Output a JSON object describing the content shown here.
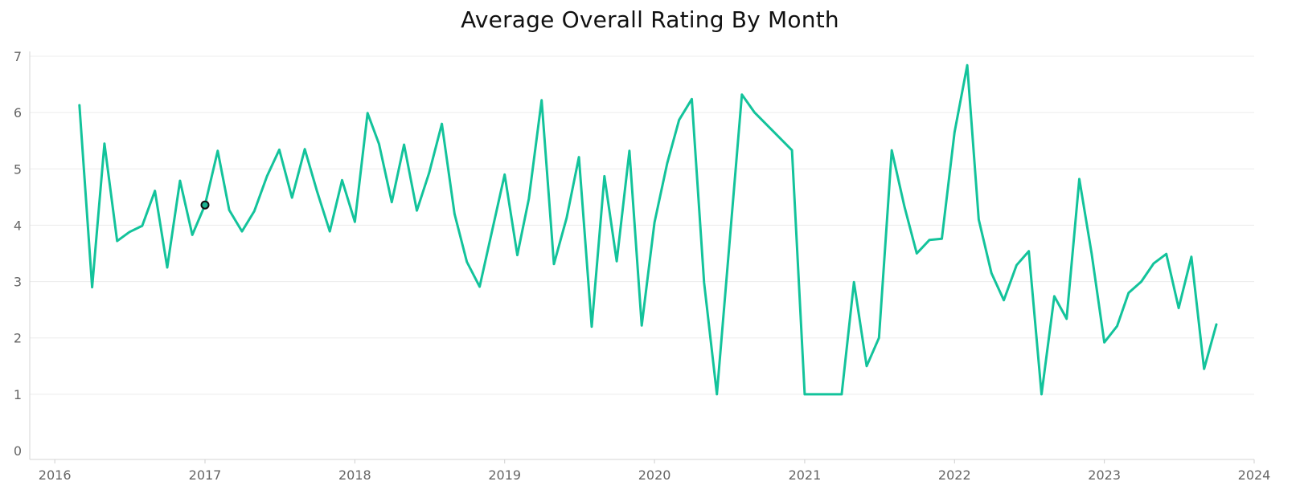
{
  "colors": {
    "series": "#13c39b",
    "highlight_fill": "#1db391",
    "highlight_stroke": "#111111"
  },
  "chart_data": {
    "type": "line",
    "title": "Average Overall Rating By Month",
    "xlabel": "",
    "ylabel": "",
    "xlim": [
      "2015-11-01",
      "2024-01-01"
    ],
    "ylim": [
      0,
      7
    ],
    "y_ticks": [
      0,
      1,
      2,
      3,
      4,
      5,
      6,
      7
    ],
    "x_ticks": [
      {
        "label": "2016",
        "date": "2016-01-01"
      },
      {
        "label": "2017",
        "date": "2017-01-01"
      },
      {
        "label": "2018",
        "date": "2018-01-01"
      },
      {
        "label": "2019",
        "date": "2019-01-01"
      },
      {
        "label": "2020",
        "date": "2020-01-01"
      },
      {
        "label": "2021",
        "date": "2021-01-01"
      },
      {
        "label": "2022",
        "date": "2022-01-01"
      },
      {
        "label": "2023",
        "date": "2023-01-01"
      },
      {
        "label": "2024",
        "date": "2024-01-01"
      }
    ],
    "grid": true,
    "legend": "none",
    "series": [
      {
        "x": [
          "2016-03",
          "2016-04",
          "2016-05",
          "2016-06",
          "2016-07",
          "2016-08",
          "2016-09",
          "2016-10",
          "2016-11",
          "2016-12",
          "2017-01",
          "2017-02",
          "2017-03",
          "2017-04",
          "2017-05",
          "2017-06",
          "2017-07",
          "2017-08",
          "2017-09",
          "2017-10",
          "2017-11",
          "2017-12",
          "2018-01",
          "2018-02",
          "2018-03",
          "2018-04",
          "2018-05",
          "2018-06",
          "2018-07",
          "2018-08",
          "2018-09",
          "2018-10",
          "2018-11",
          "2019-01",
          "2019-02",
          "2019-03",
          "2019-04",
          "2019-05",
          "2019-06",
          "2019-07",
          "2019-08",
          "2019-09",
          "2019-10",
          "2019-11",
          "2019-12",
          "2020-01",
          "2020-02",
          "2020-03",
          "2020-04",
          "2020-05",
          "2020-06",
          "2020-08",
          "2020-09",
          "2020-12",
          "2021-01",
          "2021-02",
          "2021-04",
          "2021-05",
          "2021-06",
          "2021-07",
          "2021-08",
          "2021-09",
          "2021-10",
          "2021-11",
          "2021-12",
          "2022-01",
          "2022-02",
          "2022-03",
          "2022-04",
          "2022-05",
          "2022-06",
          "2022-07",
          "2022-08",
          "2022-09",
          "2022-10",
          "2022-11",
          "2022-12",
          "2023-01",
          "2023-02",
          "2023-03",
          "2023-04",
          "2023-05",
          "2023-06",
          "2023-07",
          "2023-08",
          "2023-09",
          "2023-10"
        ],
        "values": [
          6.13,
          2.9,
          5.45,
          3.72,
          3.88,
          3.99,
          4.61,
          3.25,
          4.79,
          3.83,
          4.36,
          5.32,
          4.27,
          3.89,
          4.25,
          4.87,
          5.34,
          4.49,
          5.35,
          4.6,
          3.89,
          4.8,
          4.06,
          5.99,
          5.44,
          4.41,
          5.43,
          4.26,
          4.93,
          5.8,
          4.2,
          3.35,
          2.91,
          4.9,
          3.47,
          4.47,
          6.22,
          3.31,
          4.13,
          5.21,
          2.2,
          4.87,
          3.36,
          5.32,
          2.22,
          4.05,
          5.1,
          5.87,
          6.24,
          2.98,
          1.0,
          6.32,
          6.0,
          5.33,
          1.0,
          1.0,
          1.0,
          2.99,
          1.5,
          2.0,
          5.33,
          4.33,
          3.5,
          3.74,
          3.76,
          5.65,
          6.84,
          4.1,
          3.15,
          2.67,
          3.29,
          3.54,
          1.0,
          2.74,
          2.34,
          4.82,
          3.5,
          1.92,
          2.21,
          2.8,
          3.0,
          3.32,
          3.49,
          2.53,
          3.44,
          1.45,
          2.24
        ]
      }
    ],
    "highlighted_point": {
      "x": "2017-01",
      "value": 4.36
    }
  }
}
